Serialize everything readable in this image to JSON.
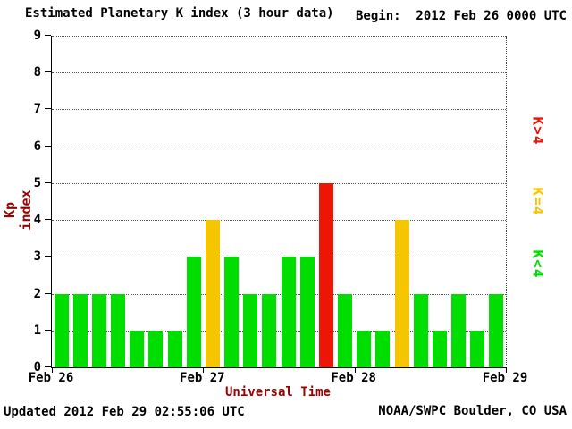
{
  "page": {
    "title": "Estimated Planetary K index (3 hour data)",
    "begin": "Begin:  2012 Feb 26 0000 UTC",
    "updated": "Updated 2012 Feb 29 02:55:06 UTC",
    "source": "NOAA/SWPC Boulder, CO USA"
  },
  "colors": {
    "green": "#00dd00",
    "yellow": "#f5c500",
    "red": "#ee1505",
    "axis_label": "#990000",
    "text": "#000000"
  },
  "chart_data": {
    "type": "bar",
    "title": "Estimated Planetary K index (3 hour data)",
    "xlabel": "Universal Time",
    "ylabel": "Kp index",
    "begin": "2012 Feb 26 0000 UTC",
    "updated": "2012 Feb 29 02:55:06 UTC",
    "ylim": [
      0,
      9
    ],
    "yticks": [
      0,
      1,
      2,
      3,
      4,
      5,
      6,
      7,
      8,
      9
    ],
    "xticks": [
      "Feb 26",
      "Feb 27",
      "Feb 28",
      "Feb 29"
    ],
    "x_interval_hours": 3,
    "bars_per_day": 8,
    "grid": "horizontal dotted",
    "legend_position": "right, rotated 90deg",
    "legend": [
      {
        "label": "K>4",
        "color": "#ee1505"
      },
      {
        "label": "K=4",
        "color": "#f5c500"
      },
      {
        "label": "K<4",
        "color": "#00dd00"
      }
    ],
    "values": [
      2,
      2,
      2,
      2,
      1,
      1,
      1,
      3,
      4,
      3,
      2,
      2,
      3,
      3,
      5,
      2,
      1,
      1,
      4,
      2,
      1,
      2,
      1,
      2
    ],
    "color_rule": "green if K<4, yellow if K=4, red if K>4"
  }
}
